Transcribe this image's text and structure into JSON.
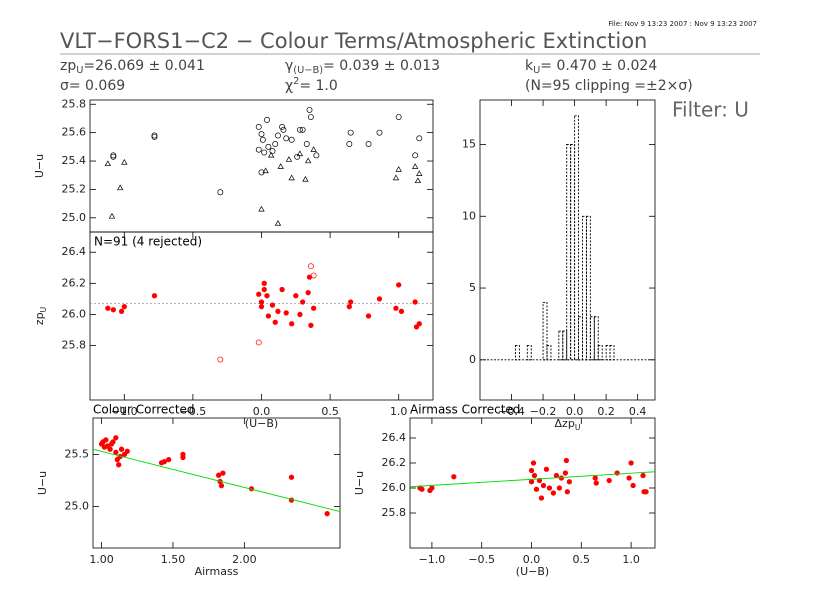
{
  "header": {
    "file": "File: Nov  9 13:23 2007 : Nov  9 13:23 2007",
    "title": "VLT−FORS1−C2 − Colour Terms/Atmospheric Extinction",
    "filter": "Filter: U",
    "stats": [
      {
        "text": "zp",
        "sub": "U",
        "rest": "=26.069 ± 0.041"
      },
      {
        "text": "σ=  0.069"
      },
      {
        "text": "γ",
        "sub": "(U−B)",
        "rest": "=  0.039 ± 0.013"
      },
      {
        "text": "χ",
        "sup": "2",
        "rest": "=   1.0"
      },
      {
        "text": "k",
        "sub": "U",
        "rest": "=  0.470 ± 0.024"
      },
      {
        "text": "(N=95 clipping =±2×σ)"
      }
    ]
  },
  "chart_data": [
    {
      "type": "scatter",
      "ylabel": {
        "text": "U−u"
      },
      "xlim": [
        -1.25,
        1.25
      ],
      "ylim": [
        24.9,
        25.83
      ],
      "yticks": [
        {
          "value": 25,
          "label": "25.0"
        },
        25.2,
        25.4,
        25.6,
        25.8
      ],
      "series": [
        {
          "marker": "circle",
          "filled": false,
          "color": "#000000",
          "x": [
            -1.08,
            -1.08,
            -0.78,
            -0.78,
            -0.3,
            -0.02,
            -0.02,
            0,
            0.01,
            0.02,
            0.04,
            0.08,
            0.1,
            0.12,
            0.15,
            0.16,
            0.18,
            0.22,
            0.26,
            0.28,
            0.3,
            0.33,
            0.35,
            0.36,
            0.4,
            0.64,
            0.65,
            0.78,
            0.86,
            1.0,
            1.12,
            1.15,
            0,
            0.05
          ],
          "values": [
            25.43,
            25.44,
            25.57,
            25.58,
            25.18,
            25.48,
            25.64,
            25.59,
            25.55,
            25.46,
            25.69,
            25.47,
            25.52,
            25.58,
            25.64,
            25.62,
            25.56,
            25.55,
            25.43,
            25.62,
            25.62,
            25.52,
            25.76,
            25.71,
            25.44,
            25.52,
            25.6,
            25.52,
            25.6,
            25.71,
            25.44,
            25.56,
            25.32,
            25.5
          ]
        },
        {
          "marker": "triangle",
          "filled": false,
          "color": "#000000",
          "x": [
            -1.12,
            -1.09,
            -1.03,
            -1.0,
            0,
            0.03,
            0.07,
            0.12,
            0.14,
            0.2,
            0.22,
            0.28,
            0.32,
            0.34,
            0.38,
            0.98,
            1.0,
            1.12,
            1.14,
            1.15
          ],
          "values": [
            25.38,
            25.01,
            25.21,
            25.39,
            25.06,
            25.33,
            25.44,
            24.96,
            25.36,
            25.41,
            25.28,
            25.45,
            25.27,
            25.4,
            25.48,
            25.28,
            25.34,
            25.36,
            25.26,
            25.31
          ]
        }
      ]
    },
    {
      "type": "scatter",
      "label": "N=91 (4 rejected)",
      "xlabel": {
        "text": "(U−B)"
      },
      "ylabel": {
        "text": "zp",
        "sub": "U"
      },
      "xlim": [
        -1.25,
        1.25
      ],
      "ylim": [
        25.45,
        26.53
      ],
      "hline": 26.069,
      "xticks": [
        {
          "value": -1,
          "label": "−1.0"
        },
        {
          "value": -0.5,
          "label": "−0.5"
        },
        {
          "value": 0,
          "label": "0.0"
        },
        0.5,
        {
          "value": 1,
          "label": "1.0"
        }
      ],
      "yticks": [
        25.8,
        {
          "value": 26,
          "label": "26.0"
        },
        26.2,
        26.4
      ],
      "series": [
        {
          "marker": "circle",
          "filled": true,
          "color": "#ff0000",
          "x": [
            -1.12,
            -1.08,
            -1.02,
            -1.0,
            -0.78,
            -0.02,
            0,
            0,
            0.02,
            0.02,
            0.04,
            0.05,
            0.08,
            0.1,
            0.12,
            0.15,
            0.18,
            0.22,
            0.25,
            0.28,
            0.3,
            0.34,
            0.35,
            0.36,
            0.38,
            0.64,
            0.65,
            0.78,
            0.86,
            0.98,
            1.0,
            1.02,
            1.12,
            1.13,
            1.15
          ],
          "values": [
            26.04,
            26.03,
            26.02,
            26.05,
            26.12,
            26.13,
            26.05,
            26.08,
            26.2,
            26.16,
            26.12,
            25.99,
            26.06,
            25.95,
            26.02,
            26.16,
            26.01,
            25.94,
            26.12,
            26.0,
            26.08,
            26.14,
            26.24,
            25.93,
            26.04,
            26.05,
            26.08,
            25.99,
            26.1,
            26.04,
            26.19,
            26.02,
            26.08,
            25.92,
            25.94
          ]
        },
        {
          "marker": "circle",
          "filled": false,
          "color": "#ff0000",
          "x": [
            -0.3,
            -0.02,
            0.36,
            0.38
          ],
          "values": [
            25.71,
            25.82,
            26.31,
            26.25
          ]
        }
      ]
    },
    {
      "type": "histogram",
      "xlabel": {
        "text": "Δzp",
        "sub": "U"
      },
      "xlim": [
        -0.6,
        0.51
      ],
      "ylim": [
        -2.8,
        18.1
      ],
      "xticks": [
        {
          "value": -0.4,
          "label": "−0.4"
        },
        {
          "value": -0.2,
          "label": "−0.2"
        },
        {
          "value": 0,
          "label": "0.0"
        },
        0.2,
        0.4
      ],
      "yticks": [
        0,
        5,
        10,
        15
      ],
      "bins": [
        -0.4,
        -0.375,
        -0.35,
        -0.325,
        -0.3,
        -0.275,
        -0.25,
        -0.225,
        -0.2,
        -0.175,
        -0.15,
        -0.125,
        -0.1,
        -0.075,
        -0.05,
        -0.025,
        0,
        0.025,
        0.05,
        0.075,
        0.1,
        0.125,
        0.15,
        0.175,
        0.2,
        0.225,
        0.25,
        0.275,
        0.3
      ],
      "values": [
        0,
        1,
        0,
        0,
        1,
        0,
        0,
        0,
        4,
        1,
        0,
        0,
        2,
        2,
        15,
        15,
        17,
        3,
        10,
        10,
        3,
        3,
        1,
        0,
        1,
        1,
        0,
        0
      ],
      "color": "#000000"
    },
    {
      "type": "scatter",
      "title": "Colour Corrected",
      "xlabel": {
        "text": "Airmass"
      },
      "ylabel": {
        "text": "U−u"
      },
      "xlim": [
        0.94,
        2.67
      ],
      "ylim": [
        24.6,
        25.85
      ],
      "xticks": [
        {
          "value": 1,
          "label": "1.00"
        },
        {
          "value": 1.5,
          "label": "1.50"
        },
        {
          "value": 2,
          "label": "2.00"
        }
      ],
      "yticks": [
        {
          "value": 25,
          "label": "25.0"
        },
        25.5
      ],
      "series": [
        {
          "marker": "circle",
          "filled": true,
          "color": "#ff0000",
          "x": [
            1.0,
            1.01,
            1.02,
            1.03,
            1.04,
            1.06,
            1.07,
            1.08,
            1.1,
            1.1,
            1.11,
            1.12,
            1.13,
            1.14,
            1.16,
            1.18,
            1.42,
            1.44,
            1.47,
            1.57,
            1.57,
            1.82,
            1.83,
            1.84,
            1.85,
            2.05,
            2.33,
            2.33,
            2.58
          ],
          "values": [
            25.6,
            25.62,
            25.57,
            25.64,
            25.58,
            25.55,
            25.6,
            25.62,
            25.66,
            25.52,
            25.45,
            25.4,
            25.48,
            25.55,
            25.5,
            25.53,
            25.42,
            25.43,
            25.45,
            25.5,
            25.47,
            25.3,
            25.24,
            25.2,
            25.32,
            25.17,
            25.06,
            25.28,
            24.93
          ]
        },
        {
          "type": "line",
          "color": "#00dd00",
          "x": [
            0.94,
            2.67
          ],
          "values": [
            25.55,
            24.95
          ]
        }
      ]
    },
    {
      "type": "scatter",
      "title": "Airmass Corrected",
      "xlabel": {
        "text": "(U−B)"
      },
      "ylabel": {
        "text": "U−u"
      },
      "xlim": [
        -1.22,
        1.24
      ],
      "ylim": [
        25.52,
        26.56
      ],
      "xticks": [
        {
          "value": -1,
          "label": "−1.0"
        },
        {
          "value": -0.5,
          "label": "−0.5"
        },
        {
          "value": 0,
          "label": "0.0"
        },
        0.5,
        {
          "value": 1,
          "label": "1.0"
        }
      ],
      "yticks": [
        25.8,
        {
          "value": 26,
          "label": "26.0"
        },
        26.2,
        26.4
      ],
      "series": [
        {
          "marker": "circle",
          "filled": true,
          "color": "#ff0000",
          "x": [
            -1.12,
            -1.1,
            -1.02,
            -1.0,
            -0.78,
            0,
            0,
            0.02,
            0.03,
            0.05,
            0.08,
            0.1,
            0.12,
            0.15,
            0.18,
            0.22,
            0.25,
            0.28,
            0.3,
            0.34,
            0.35,
            0.36,
            0.38,
            0.64,
            0.65,
            0.78,
            0.86,
            0.98,
            1.0,
            1.02,
            1.12,
            1.13,
            1.15
          ],
          "values": [
            26.0,
            25.99,
            25.98,
            26.0,
            26.09,
            26.14,
            26.05,
            26.2,
            26.1,
            25.99,
            26.06,
            25.92,
            26.02,
            26.15,
            26.0,
            25.96,
            26.1,
            26.0,
            26.08,
            26.12,
            26.22,
            25.97,
            26.05,
            26.08,
            26.04,
            26.06,
            26.12,
            26.08,
            26.2,
            26.02,
            26.1,
            25.97,
            25.97
          ]
        },
        {
          "type": "line",
          "color": "#00dd00",
          "x": [
            -1.22,
            1.24
          ],
          "values": [
            26.01,
            26.13
          ]
        }
      ]
    }
  ]
}
